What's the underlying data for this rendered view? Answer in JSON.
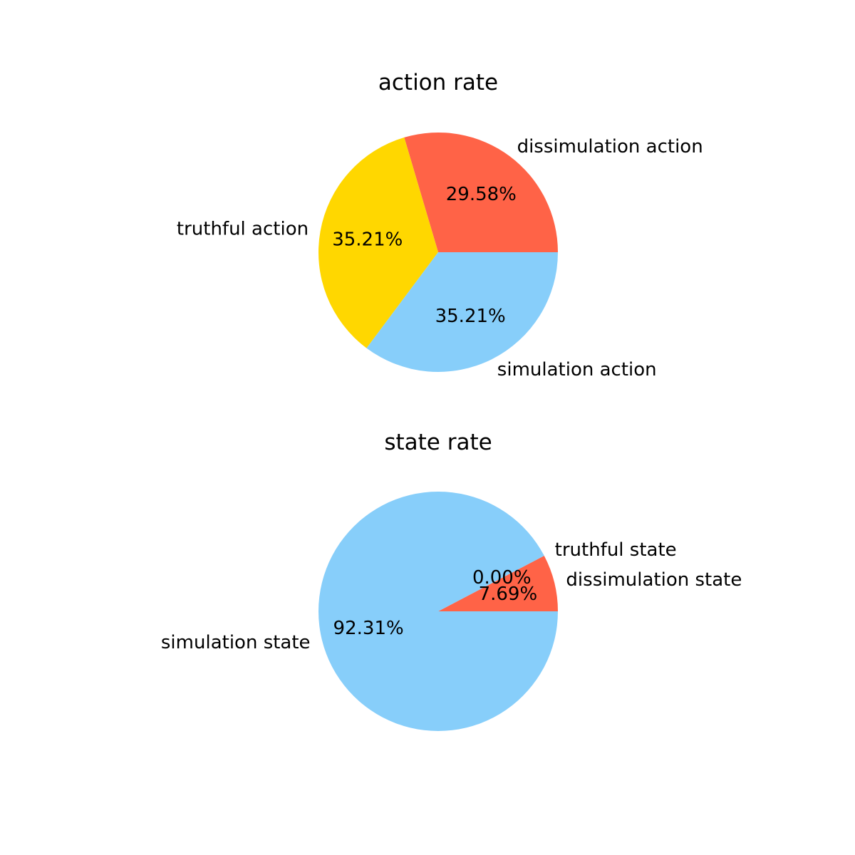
{
  "chart_data": [
    {
      "type": "pie",
      "title": "action rate",
      "labels": [
        "dissimulation action",
        "truthful action",
        "simulation action"
      ],
      "values": [
        29.58,
        35.21,
        35.21
      ],
      "percent_labels": [
        "29.58%",
        "35.21%",
        "35.21%"
      ],
      "colors": [
        "#ff6347",
        "#ffd700",
        "#87cefa"
      ],
      "start_angle_deg": 0,
      "direction": "counterclockwise"
    },
    {
      "type": "pie",
      "title": "state rate",
      "labels": [
        "dissimulation state",
        "truthful state",
        "simulation state"
      ],
      "values": [
        7.69,
        0.0,
        92.31
      ],
      "percent_labels": [
        "7.69%",
        "0.00%",
        "92.31%"
      ],
      "colors": [
        "#ff6347",
        "#ffd700",
        "#87cefa"
      ],
      "start_angle_deg": 0,
      "direction": "counterclockwise"
    }
  ]
}
